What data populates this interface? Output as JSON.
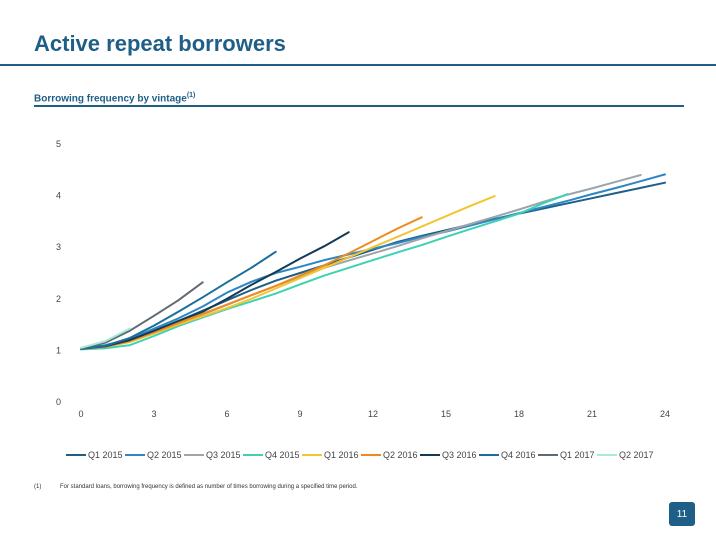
{
  "header": {
    "title": "Active repeat borrowers",
    "subtitle": "Borrowing frequency by vintage",
    "subtitle_note": "(1)"
  },
  "footnote": {
    "marker": "(1)",
    "text": "For standard loans, borrowing frequency is defined as number of times borrowing during a specified time period."
  },
  "page_number": "11",
  "chart_data": {
    "type": "line",
    "title": "",
    "xlabel": "",
    "ylabel": "",
    "xlim": [
      0,
      24
    ],
    "ylim": [
      0,
      5
    ],
    "x_ticks": [
      0,
      3,
      6,
      9,
      12,
      15,
      18,
      21,
      24
    ],
    "y_ticks": [
      0,
      1,
      2,
      3,
      4,
      5
    ],
    "grid": false,
    "legend": "bottom",
    "series": [
      {
        "name": "Q1 2015",
        "color": "#1f5f87",
        "x": [
          0,
          1,
          2,
          3,
          4,
          5,
          6,
          7,
          8,
          9,
          10,
          11,
          12,
          13,
          14,
          15,
          16,
          17,
          18,
          19,
          20,
          21,
          22,
          23,
          24
        ],
        "y": [
          1.03,
          1.08,
          1.2,
          1.38,
          1.57,
          1.77,
          1.97,
          2.17,
          2.35,
          2.5,
          2.65,
          2.8,
          2.95,
          3.1,
          3.22,
          3.33,
          3.44,
          3.55,
          3.65,
          3.75,
          3.85,
          3.95,
          4.05,
          4.15,
          4.25
        ]
      },
      {
        "name": "Q2 2015",
        "color": "#2c87c4",
        "x": [
          0,
          1,
          2,
          3,
          4,
          5,
          6,
          7,
          8,
          9,
          10,
          11,
          12,
          13,
          14,
          15,
          16,
          17,
          18,
          19,
          20,
          21,
          22,
          23,
          24
        ],
        "y": [
          1.04,
          1.1,
          1.22,
          1.42,
          1.62,
          1.85,
          2.12,
          2.33,
          2.5,
          2.62,
          2.75,
          2.86,
          2.97,
          3.08,
          3.2,
          3.3,
          3.42,
          3.54,
          3.66,
          3.78,
          3.9,
          4.03,
          4.15,
          4.28,
          4.41
        ]
      },
      {
        "name": "Q3 2015",
        "color": "#9da5ab",
        "x": [
          0,
          1,
          2,
          3,
          4,
          5,
          6,
          7,
          8,
          9,
          10,
          11,
          12,
          13,
          14,
          15,
          16,
          17,
          18,
          19,
          20,
          21,
          22,
          23
        ],
        "y": [
          1.03,
          1.07,
          1.17,
          1.33,
          1.52,
          1.7,
          1.88,
          2.07,
          2.25,
          2.43,
          2.6,
          2.74,
          2.88,
          3.02,
          3.17,
          3.31,
          3.45,
          3.59,
          3.73,
          3.88,
          4.02,
          4.14,
          4.27,
          4.4
        ]
      },
      {
        "name": "Q4 2015",
        "color": "#3fd1b3",
        "x": [
          0,
          1,
          2,
          3,
          4,
          5,
          6,
          7,
          8,
          9,
          10,
          11,
          12,
          13,
          14,
          15,
          16,
          17,
          18,
          19,
          20
        ],
        "y": [
          1.02,
          1.04,
          1.1,
          1.28,
          1.47,
          1.64,
          1.8,
          1.95,
          2.1,
          2.28,
          2.45,
          2.6,
          2.75,
          2.9,
          3.04,
          3.2,
          3.35,
          3.5,
          3.65,
          3.85,
          4.03
        ]
      },
      {
        "name": "Q1 2016",
        "color": "#f0c634",
        "x": [
          0,
          1,
          2,
          3,
          4,
          5,
          6,
          7,
          8,
          9,
          10,
          11,
          12,
          13,
          14,
          15,
          16,
          17
        ],
        "y": [
          1.03,
          1.07,
          1.16,
          1.33,
          1.5,
          1.66,
          1.82,
          2.0,
          2.2,
          2.4,
          2.6,
          2.8,
          3.0,
          3.2,
          3.4,
          3.6,
          3.8,
          3.99
        ]
      },
      {
        "name": "Q2 2016",
        "color": "#ef8a1c",
        "x": [
          0,
          1,
          2,
          3,
          4,
          5,
          6,
          7,
          8,
          9,
          10,
          11,
          12,
          13,
          14
        ],
        "y": [
          1.03,
          1.07,
          1.18,
          1.35,
          1.53,
          1.71,
          1.89,
          2.07,
          2.25,
          2.45,
          2.65,
          2.88,
          3.12,
          3.36,
          3.58
        ]
      },
      {
        "name": "Q3 2016",
        "color": "#143b56",
        "x": [
          0,
          1,
          2,
          3,
          4,
          5,
          6,
          7,
          8,
          9,
          10,
          11
        ],
        "y": [
          1.03,
          1.08,
          1.2,
          1.38,
          1.57,
          1.75,
          2.0,
          2.27,
          2.52,
          2.78,
          3.02,
          3.29
        ]
      },
      {
        "name": "Q4 2016",
        "color": "#1a6e9e",
        "x": [
          0,
          1,
          2,
          3,
          4,
          5,
          6,
          7,
          8
        ],
        "y": [
          1.03,
          1.09,
          1.24,
          1.48,
          1.75,
          2.03,
          2.32,
          2.6,
          2.91
        ]
      },
      {
        "name": "Q1 2017",
        "color": "#5f6a72",
        "x": [
          0,
          1,
          2,
          3,
          4,
          5
        ],
        "y": [
          1.04,
          1.15,
          1.38,
          1.67,
          1.97,
          2.32
        ]
      },
      {
        "name": "Q2 2017",
        "color": "#a7ead9",
        "x": [
          0,
          1,
          2
        ],
        "y": [
          1.05,
          1.18,
          1.42
        ]
      }
    ]
  }
}
